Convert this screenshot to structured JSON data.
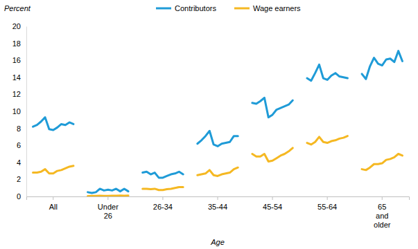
{
  "chart_data": {
    "type": "line",
    "y_label": "Percent",
    "x_label": "Age",
    "categories": [
      "All",
      "Under 26",
      "26-34",
      "35-44",
      "45-54",
      "55-64",
      "65 and older"
    ],
    "series": [
      {
        "name": "Contributors",
        "color": "#1f9bd7",
        "values": [
          [
            8.2,
            8.4,
            8.8,
            9.3,
            7.9,
            7.8,
            8.1,
            8.5,
            8.4,
            8.7,
            8.5
          ],
          [
            0.5,
            0.4,
            0.5,
            0.9,
            0.7,
            0.8,
            0.7,
            0.9,
            0.6,
            0.9,
            0.6
          ],
          [
            2.8,
            2.9,
            2.6,
            2.8,
            2.2,
            2.2,
            2.4,
            2.6,
            2.7,
            2.9,
            2.6
          ],
          [
            6.2,
            6.6,
            7.1,
            7.7,
            6.1,
            5.9,
            6.2,
            6.3,
            6.4,
            7.1,
            7.1
          ],
          [
            11.0,
            10.9,
            11.2,
            11.6,
            9.3,
            9.6,
            10.2,
            10.4,
            10.6,
            10.8,
            11.3
          ],
          [
            13.9,
            13.6,
            14.5,
            15.5,
            13.9,
            13.7,
            14.2,
            14.5,
            14.1,
            14.0,
            13.9
          ],
          [
            14.4,
            13.8,
            15.3,
            16.3,
            15.6,
            15.4,
            16.1,
            16.2,
            15.8,
            17.1,
            15.9
          ]
        ]
      },
      {
        "name": "Wage earners",
        "color": "#f5b822",
        "values": [
          [
            2.8,
            2.8,
            2.9,
            3.2,
            2.7,
            2.7,
            3.0,
            3.1,
            3.3,
            3.5,
            3.6
          ],
          [
            0.05,
            0.06,
            0.07,
            0.08,
            0.07,
            0.07,
            0.08,
            0.09,
            0.1,
            0.09,
            0.1
          ],
          [
            0.9,
            0.9,
            0.85,
            0.9,
            0.75,
            0.75,
            0.85,
            0.9,
            1.0,
            1.1,
            1.1
          ],
          [
            2.5,
            2.6,
            2.7,
            3.1,
            2.5,
            2.4,
            2.6,
            2.7,
            2.8,
            3.2,
            3.4
          ],
          [
            5.0,
            4.7,
            4.7,
            5.0,
            4.1,
            4.2,
            4.5,
            4.8,
            5.0,
            5.3,
            5.7
          ],
          [
            6.3,
            6.1,
            6.4,
            7.0,
            6.4,
            6.3,
            6.5,
            6.6,
            6.8,
            6.9,
            7.1
          ],
          [
            3.2,
            3.1,
            3.4,
            3.8,
            3.8,
            3.9,
            4.3,
            4.4,
            4.6,
            5.0,
            4.8
          ]
        ]
      }
    ],
    "ylim": [
      0,
      20
    ],
    "yticks": [
      0,
      2,
      4,
      6,
      8,
      10,
      12,
      14,
      16,
      18,
      20
    ],
    "legend": "top",
    "grid": false
  }
}
